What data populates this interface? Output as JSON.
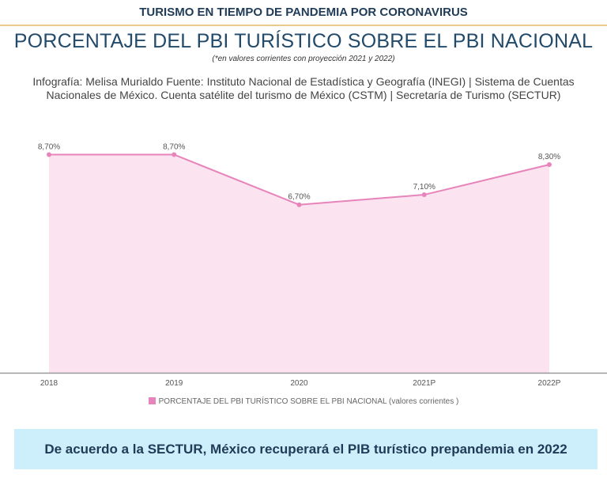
{
  "header": {
    "banner": "TURISMO EN TIEMPO DE PANDEMIA POR CORONAVIRUS",
    "title": "PORCENTAJE DEL PBI TURÍSTICO SOBRE EL PBI NACIONAL",
    "subtitle": "(*en valores corrientes con proyección 2021 y 2022)",
    "credits": "Infografía: Melisa Murialdo Fuente: Instituto Nacional de Estadística y Geografía (INEGI) | Sistema de Cuentas Nacionales de México. Cuenta satélite del turismo de México (CSTM) | Secretaría de Turismo (SECTUR)"
  },
  "chart_data": {
    "type": "area",
    "categories": [
      "2018",
      "2019",
      "2020",
      "2021P",
      "2022P"
    ],
    "series": [
      {
        "name": "PORCENTAJE DEL PBI TURÍSTICO SOBRE EL PBI NACIONAL (valores corrientes )",
        "values": [
          8.7,
          8.7,
          6.7,
          7.1,
          8.3
        ],
        "labels": [
          "8,70%",
          "8,70%",
          "6,70%",
          "7,10%",
          "8,30%"
        ]
      }
    ],
    "ylim": [
      0,
      9.5
    ],
    "grid": false,
    "legend": "bottom",
    "colors": {
      "line": "#e784bb",
      "fill": "#fbe3ef",
      "axis": "#999999"
    }
  },
  "legend": {
    "label": "PORCENTAJE DEL PBI TURÍSTICO SOBRE EL PBI NACIONAL (valores corrientes )"
  },
  "callout": {
    "text": "De acuerdo a la SECTUR, México recuperará el PIB turístico prepandemia en 2022"
  }
}
